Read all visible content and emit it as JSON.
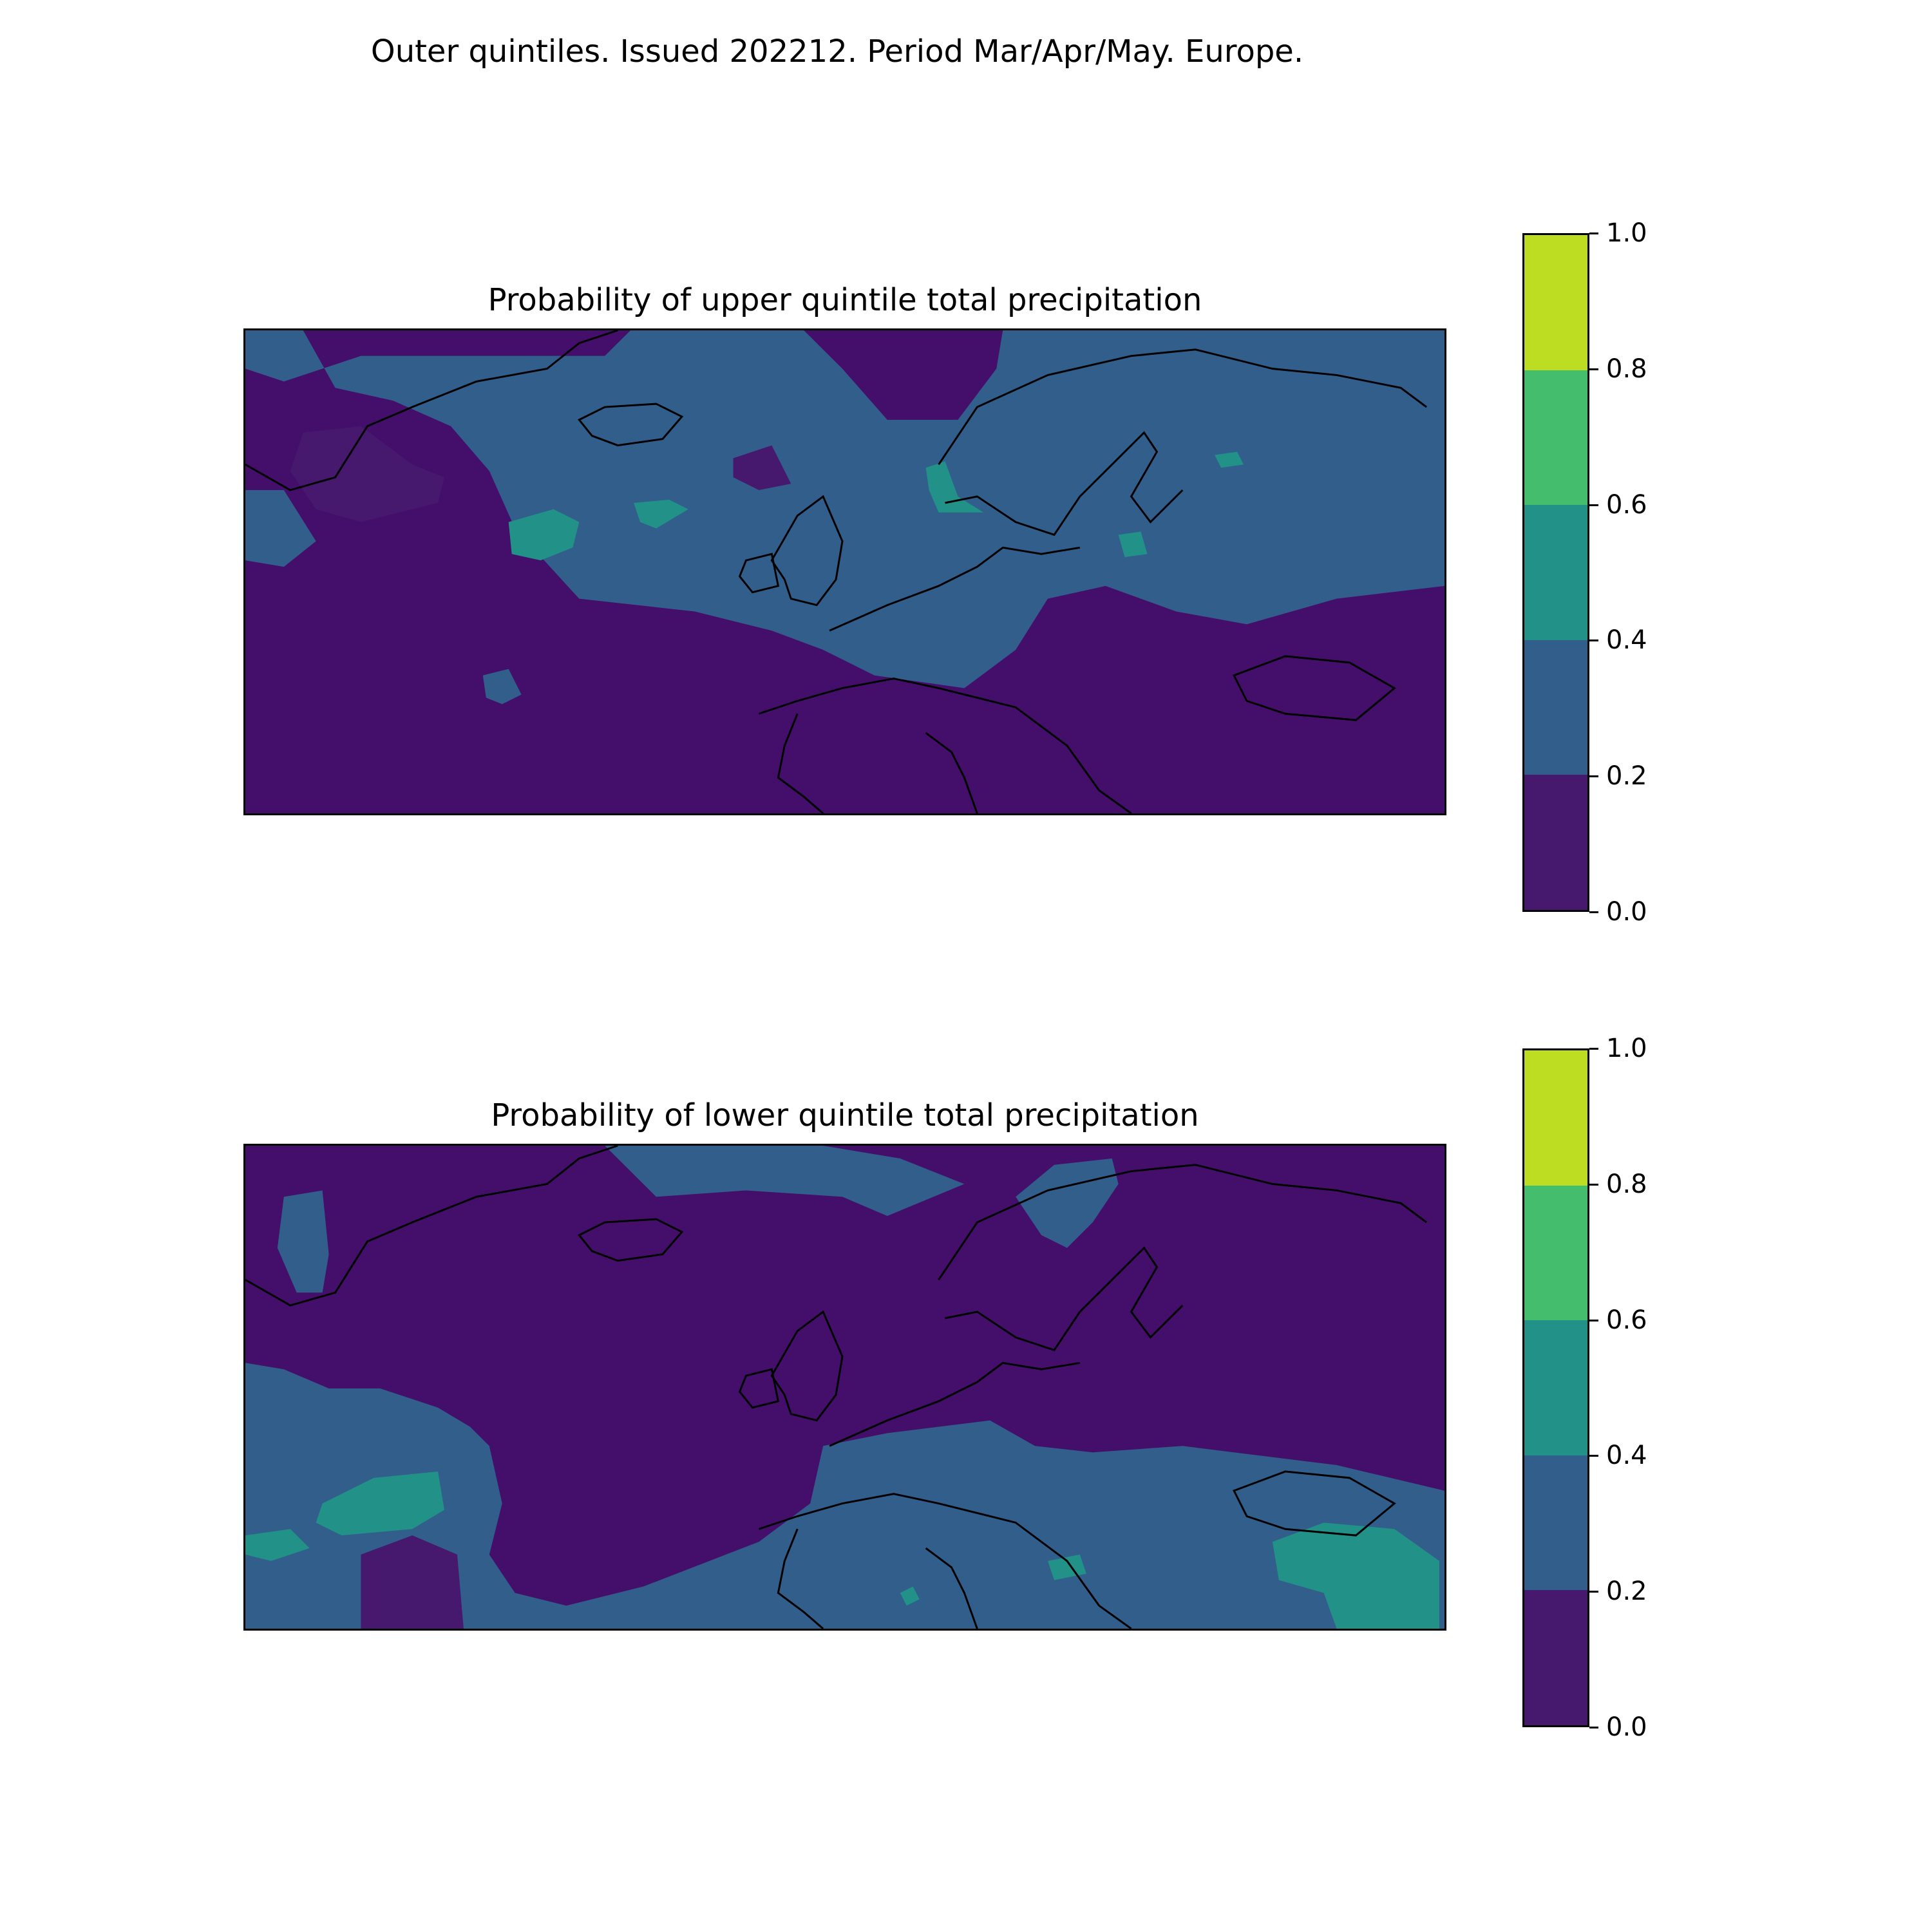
{
  "figure": {
    "suptitle": "Outer quintiles. Issued 202212. Period Mar/Apr/May. Europe."
  },
  "colorscale": {
    "levels": [
      "0.0",
      "0.2",
      "0.4",
      "0.6",
      "0.8",
      "1.0"
    ],
    "colors": [
      "#46186e",
      "#325e8c",
      "#229188",
      "#44bd6c",
      "#bcdd22"
    ]
  },
  "panels": [
    {
      "title": "Probability of upper quintile total precipitation",
      "dominant_category": "0.2-0.4 over northern Atlantic and northern/central Europe; 0.0-0.2 over southern Europe, Mediterranean and subtropical Atlantic",
      "high_spots": "0.4-0.6 over western Norway, mid-Atlantic and southern Sweden"
    },
    {
      "title": "Probability of lower quintile total precipitation",
      "dominant_category": "0.0-0.2 over most of the Atlantic and northern Europe; 0.2-0.4 over southern Europe and subtropical Atlantic",
      "high_spots": "0.4-0.6 over Turkey, southern Italy and the eastern subtropical Atlantic"
    }
  ]
}
